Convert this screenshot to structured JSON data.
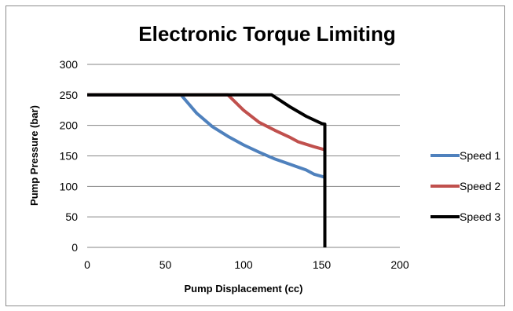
{
  "chart_data": {
    "type": "line",
    "title": "Electronic Torque Limiting",
    "xlabel": "Pump Displacement (cc)",
    "ylabel": "Pump Pressure (bar)",
    "xlim": [
      0,
      200
    ],
    "ylim": [
      0,
      300
    ],
    "xticks": [
      "0",
      "50",
      "100",
      "150",
      "200"
    ],
    "yticks": [
      "0",
      "50",
      "100",
      "150",
      "200",
      "250",
      "300"
    ],
    "grid": "horizontal",
    "legend_position": "right",
    "series": [
      {
        "name": "Speed 1",
        "color": "#4f81bd",
        "points": [
          [
            0,
            250
          ],
          [
            60,
            250
          ],
          [
            70,
            220
          ],
          [
            80,
            198
          ],
          [
            90,
            182
          ],
          [
            100,
            168
          ],
          [
            110,
            156
          ],
          [
            120,
            145
          ],
          [
            130,
            136
          ],
          [
            140,
            127
          ],
          [
            145,
            120
          ],
          [
            152,
            115
          ]
        ]
      },
      {
        "name": "Speed 2",
        "color": "#c0504d",
        "points": [
          [
            0,
            250
          ],
          [
            90,
            250
          ],
          [
            100,
            225
          ],
          [
            110,
            205
          ],
          [
            120,
            192
          ],
          [
            130,
            180
          ],
          [
            135,
            173
          ],
          [
            145,
            165
          ],
          [
            152,
            160
          ]
        ]
      },
      {
        "name": "Speed 3",
        "color": "#000000",
        "points": [
          [
            0,
            250
          ],
          [
            118,
            250
          ],
          [
            130,
            230
          ],
          [
            140,
            215
          ],
          [
            150,
            203
          ],
          [
            152,
            202
          ],
          [
            152,
            0
          ]
        ]
      }
    ]
  }
}
